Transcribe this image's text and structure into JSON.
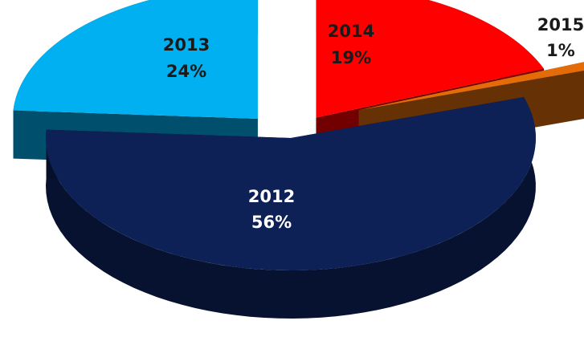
{
  "chart_data": {
    "type": "pie",
    "title": "",
    "categories": [
      "2012",
      "2013",
      "2014",
      "2015"
    ],
    "values": [
      56,
      24,
      19,
      1
    ],
    "labels": [
      {
        "category": "2012",
        "value": "56%"
      },
      {
        "category": "2013",
        "value": "24%"
      },
      {
        "category": "2014",
        "value": "19%"
      },
      {
        "category": "2015",
        "value": "1%"
      }
    ],
    "style": "3d-exploded",
    "legend": "none",
    "colors": {
      "2012": "#0d2157",
      "2013": "#00b0f0",
      "2014": "#ff0000",
      "2015": "#e36c09"
    },
    "label_colors": {
      "2012": "#ffffff",
      "2013": "#1a1a1a",
      "2014": "#1a1a1a",
      "2015": "#1a1a1a"
    }
  }
}
